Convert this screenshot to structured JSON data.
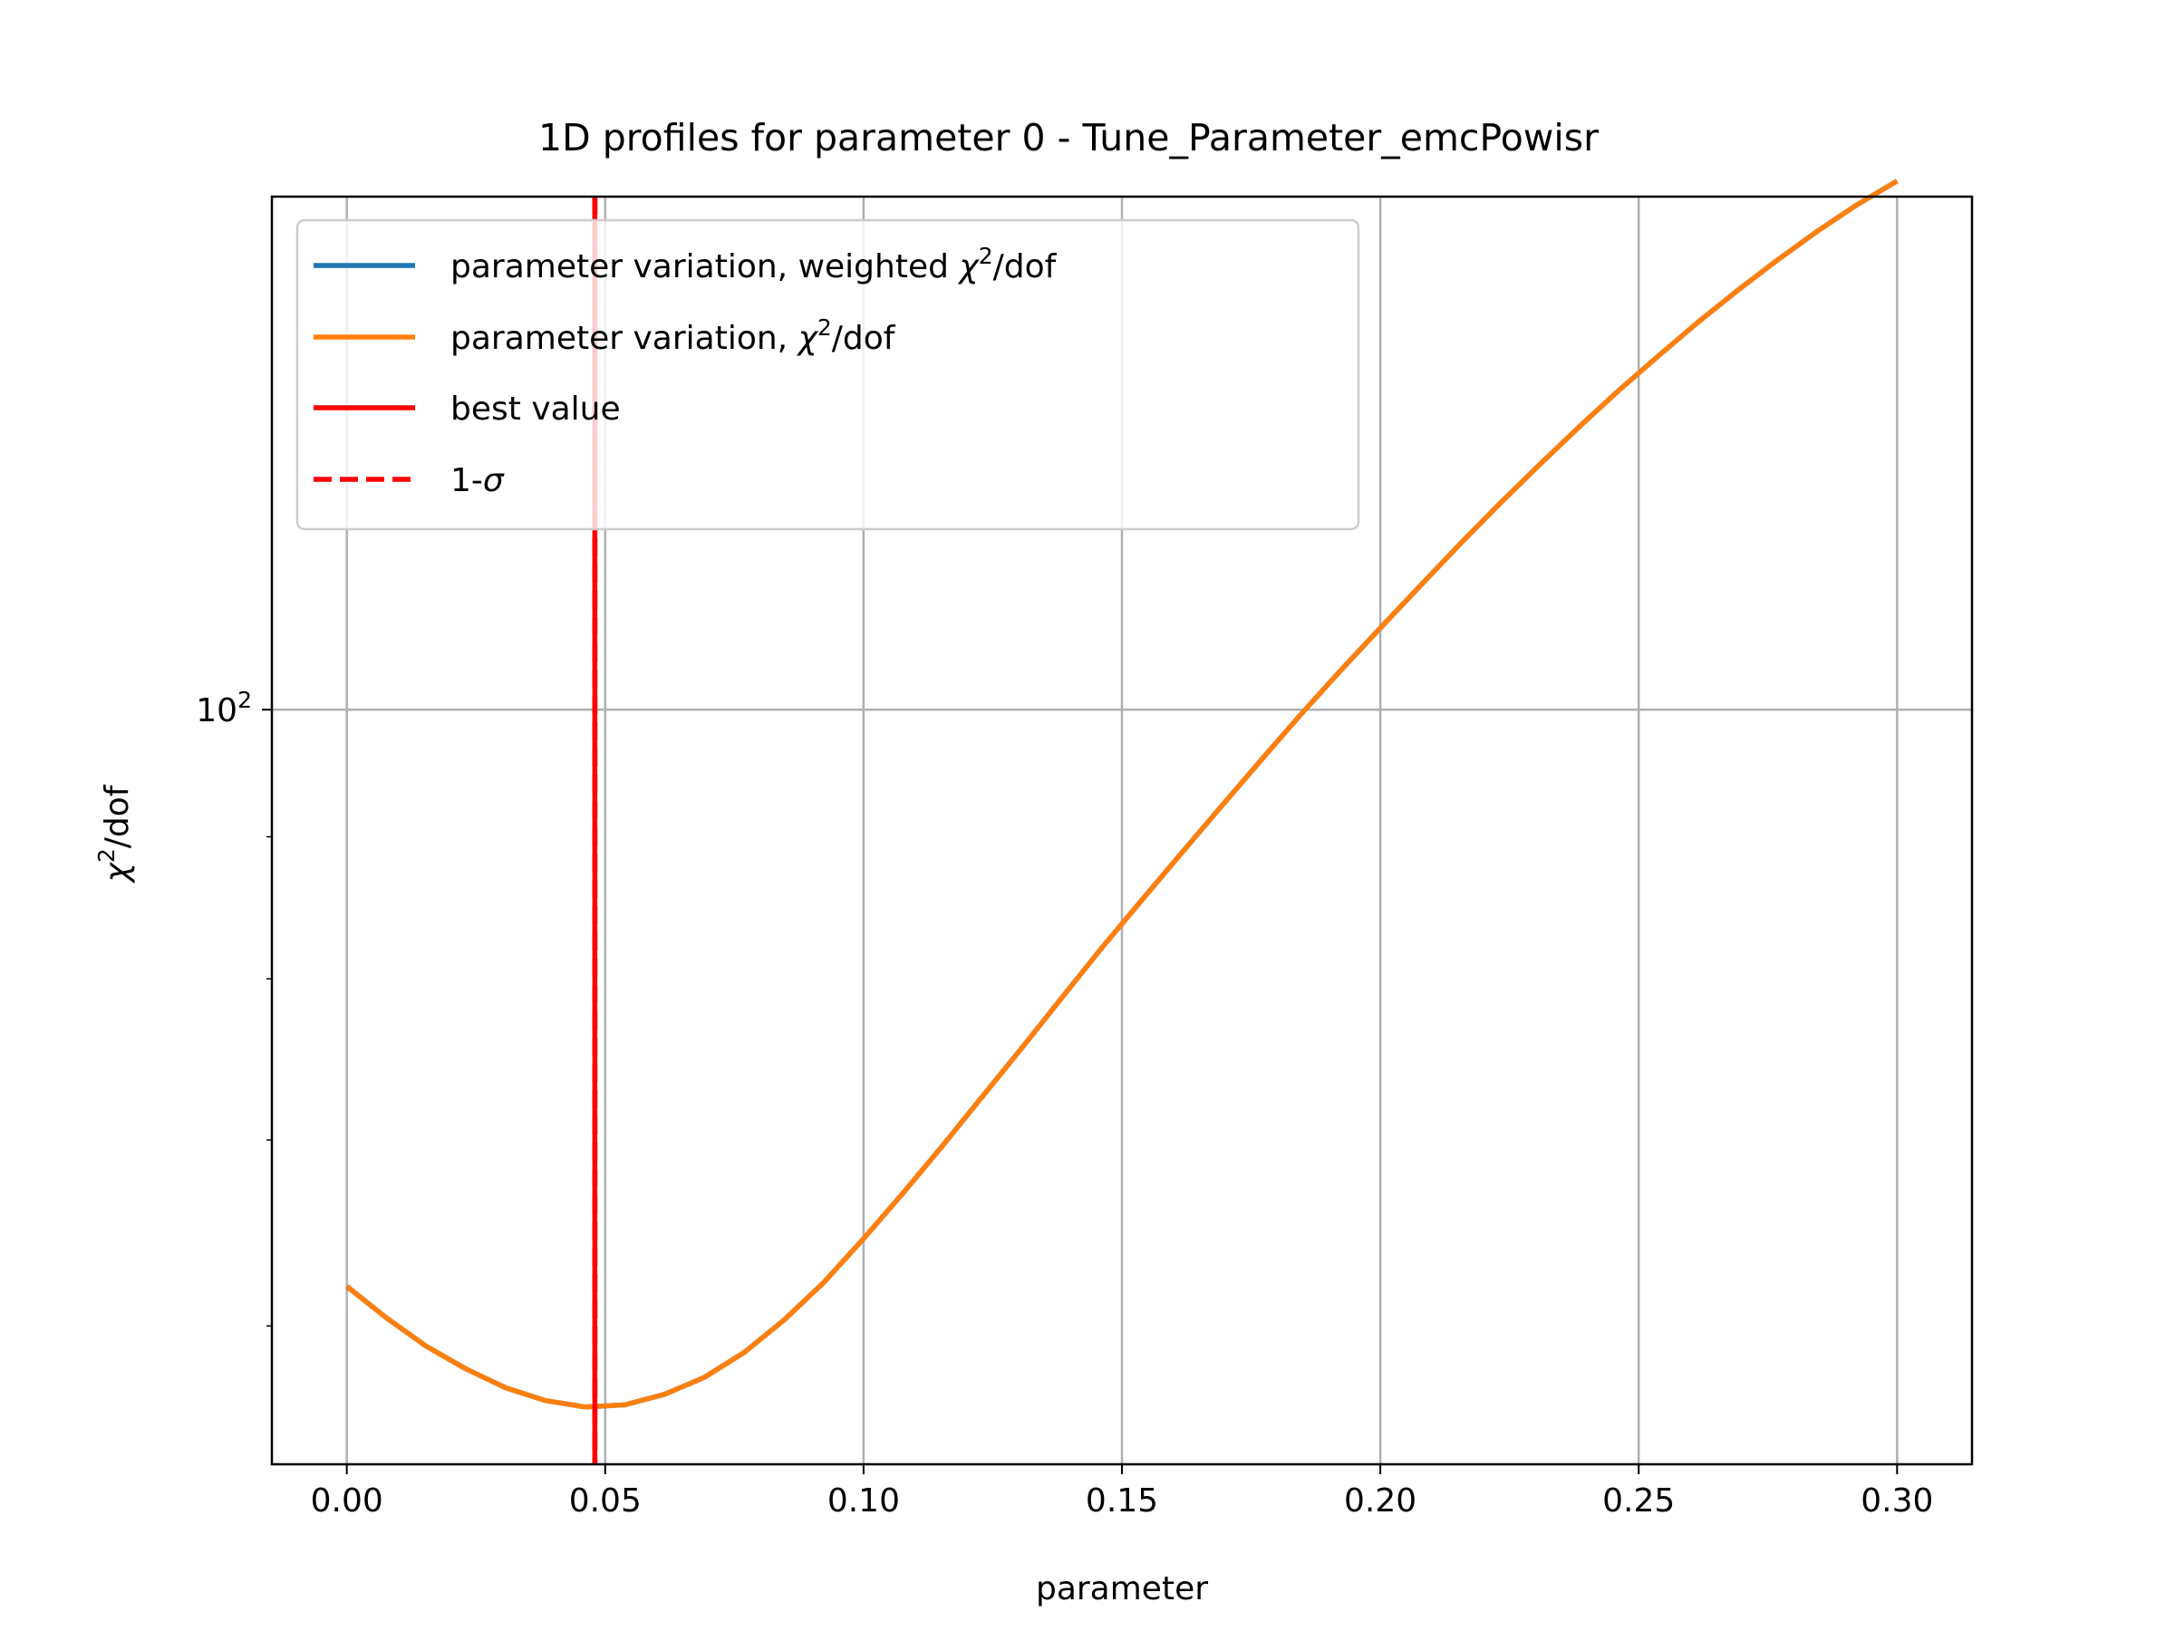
{
  "chart_data": {
    "type": "line",
    "title": "1D profiles for parameter 0 - Tune_Parameter_emcPowisr",
    "xlabel": "parameter",
    "ylabel": "χ²/dof",
    "ylabel_base": "χ",
    "ylabel_sup": "2",
    "ylabel_rest": "/dof",
    "x_scale": "linear",
    "y_scale": "log",
    "xlim": [
      -0.0145,
      0.3145
    ],
    "ylim": [
      53.5,
      153
    ],
    "x_ticks": [
      0.0,
      0.05,
      0.1,
      0.15,
      0.2,
      0.25,
      0.3
    ],
    "x_tick_labels": [
      "0.00",
      "0.05",
      "0.10",
      "0.15",
      "0.20",
      "0.25",
      "0.30"
    ],
    "y_major_ticks": [
      100
    ],
    "y_major_tick_labels": [
      {
        "base": "10",
        "exp": "2"
      }
    ],
    "y_minor_ticks": [
      60,
      70,
      80,
      90,
      200
    ],
    "grid": true,
    "legend_position": "top-left",
    "legend": [
      {
        "label_main": "parameter variation, weighted ",
        "label_math": "χ",
        "label_sup": "2",
        "label_tail": "/dof",
        "style": "line",
        "color": "#1f77b4"
      },
      {
        "label_main": "parameter variation, ",
        "label_math": "χ",
        "label_sup": "2",
        "label_tail": "/dof",
        "style": "line",
        "color": "#ff7f0e"
      },
      {
        "label_main": "best value",
        "label_math": "",
        "label_sup": "",
        "label_tail": "",
        "style": "line",
        "color": "#ff0000"
      },
      {
        "label_main": "1-",
        "label_math": "σ",
        "label_sup": "",
        "label_tail": "",
        "style": "dashed",
        "color": "#ff0000"
      }
    ],
    "series": [
      {
        "name": "parameter variation, weighted χ²/dof",
        "color": "#1f77b4",
        "x": [
          0.0,
          0.00769,
          0.01538,
          0.02308,
          0.03077,
          0.03846,
          0.04615,
          0.05385,
          0.06154,
          0.06923,
          0.07692,
          0.08462,
          0.09231,
          0.1,
          0.10769,
          0.11538,
          0.12308,
          0.13077,
          0.13846,
          0.14615,
          0.15385,
          0.16154,
          0.16923,
          0.17692,
          0.18462,
          0.19231,
          0.2,
          0.20769,
          0.21538,
          0.22308,
          0.23077,
          0.23846,
          0.24615,
          0.25385,
          0.26154,
          0.26923,
          0.27692,
          0.28462,
          0.29231,
          0.3
        ],
        "y": [
          62.0,
          60.4,
          59.0,
          57.9,
          57.0,
          56.4,
          56.1,
          56.2,
          56.7,
          57.5,
          58.7,
          60.3,
          62.2,
          64.5,
          67.0,
          69.7,
          72.6,
          75.6,
          78.8,
          82.1,
          85.4,
          88.8,
          92.3,
          95.9,
          99.6,
          103.3,
          107.0,
          110.8,
          114.7,
          118.6,
          122.5,
          126.4,
          130.3,
          134.1,
          137.9,
          141.6,
          145.2,
          148.7,
          152.0,
          155.0
        ]
      },
      {
        "name": "parameter variation, χ²/dof",
        "color": "#ff7f0e",
        "x": [
          0.0,
          0.00769,
          0.01538,
          0.02308,
          0.03077,
          0.03846,
          0.04615,
          0.05385,
          0.06154,
          0.06923,
          0.07692,
          0.08462,
          0.09231,
          0.1,
          0.10769,
          0.11538,
          0.12308,
          0.13077,
          0.13846,
          0.14615,
          0.15385,
          0.16154,
          0.16923,
          0.17692,
          0.18462,
          0.19231,
          0.2,
          0.20769,
          0.21538,
          0.22308,
          0.23077,
          0.23846,
          0.24615,
          0.25385,
          0.26154,
          0.26923,
          0.27692,
          0.28462,
          0.29231,
          0.3
        ],
        "y": [
          62.0,
          60.4,
          59.0,
          57.9,
          57.0,
          56.4,
          56.1,
          56.2,
          56.7,
          57.5,
          58.7,
          60.3,
          62.2,
          64.5,
          67.0,
          69.7,
          72.6,
          75.6,
          78.8,
          82.1,
          85.4,
          88.8,
          92.3,
          95.9,
          99.6,
          103.3,
          107.0,
          110.8,
          114.7,
          118.6,
          122.5,
          126.4,
          130.3,
          134.1,
          137.9,
          141.6,
          145.2,
          148.7,
          152.0,
          155.0
        ]
      }
    ],
    "best_value": {
      "x": 0.048,
      "color": "#ff0000"
    },
    "one_sigma": {
      "x": [
        0.048,
        0.048
      ],
      "color": "#ff0000"
    }
  }
}
